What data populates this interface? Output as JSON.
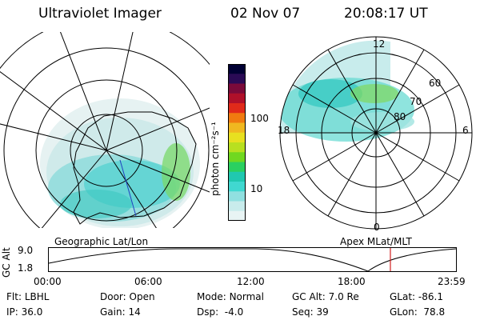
{
  "header": {
    "instrument": "Ultraviolet Imager",
    "date": "02 Nov 07",
    "time": "20:08:17 UT"
  },
  "left_map": {
    "caption": "Geographic Lat/Lon"
  },
  "colorbar": {
    "label": "photon cm⁻²s⁻¹",
    "ticks": [
      "100",
      "10"
    ],
    "scale": "log",
    "colors": [
      "#000033",
      "#2a0a55",
      "#7a0a3a",
      "#b0102a",
      "#e02a1a",
      "#f07a10",
      "#f0b820",
      "#e8e020",
      "#b8e020",
      "#70d820",
      "#2ad060",
      "#20c8b0",
      "#40d8d0",
      "#90e0e0",
      "#c8ecec",
      "#e8f4f4"
    ]
  },
  "right_map": {
    "caption": "Apex MLat/MLT",
    "mlt_labels": [
      "12",
      "18",
      "6",
      "0"
    ],
    "mlat_labels": [
      "60",
      "70",
      "80"
    ]
  },
  "altitude_plot": {
    "ylabel": "GC Alt",
    "yticks": [
      "9.0",
      "1.8"
    ],
    "xticks": [
      "00:00",
      "06:00",
      "12:00",
      "18:00",
      "23:59"
    ],
    "current_time_hours": 20.14,
    "marker_color": "#d02020"
  },
  "footer": {
    "row1": [
      {
        "label": "Flt:",
        "value": "LBHL"
      },
      {
        "label": "Door:",
        "value": "Open"
      },
      {
        "label": "Mode:",
        "value": "Normal"
      },
      {
        "label": "GC Alt:",
        "value": "7.0 Re"
      },
      {
        "label": "GLat:",
        "value": "-86.1"
      }
    ],
    "row2": [
      {
        "label": "IP:",
        "value": "36.0"
      },
      {
        "label": "Gain:",
        "value": "14"
      },
      {
        "label": "Dsp:",
        "value": "-4.0"
      },
      {
        "label": "Seq:",
        "value": "39"
      },
      {
        "label": "GLon:",
        "value": "78.8"
      }
    ]
  }
}
